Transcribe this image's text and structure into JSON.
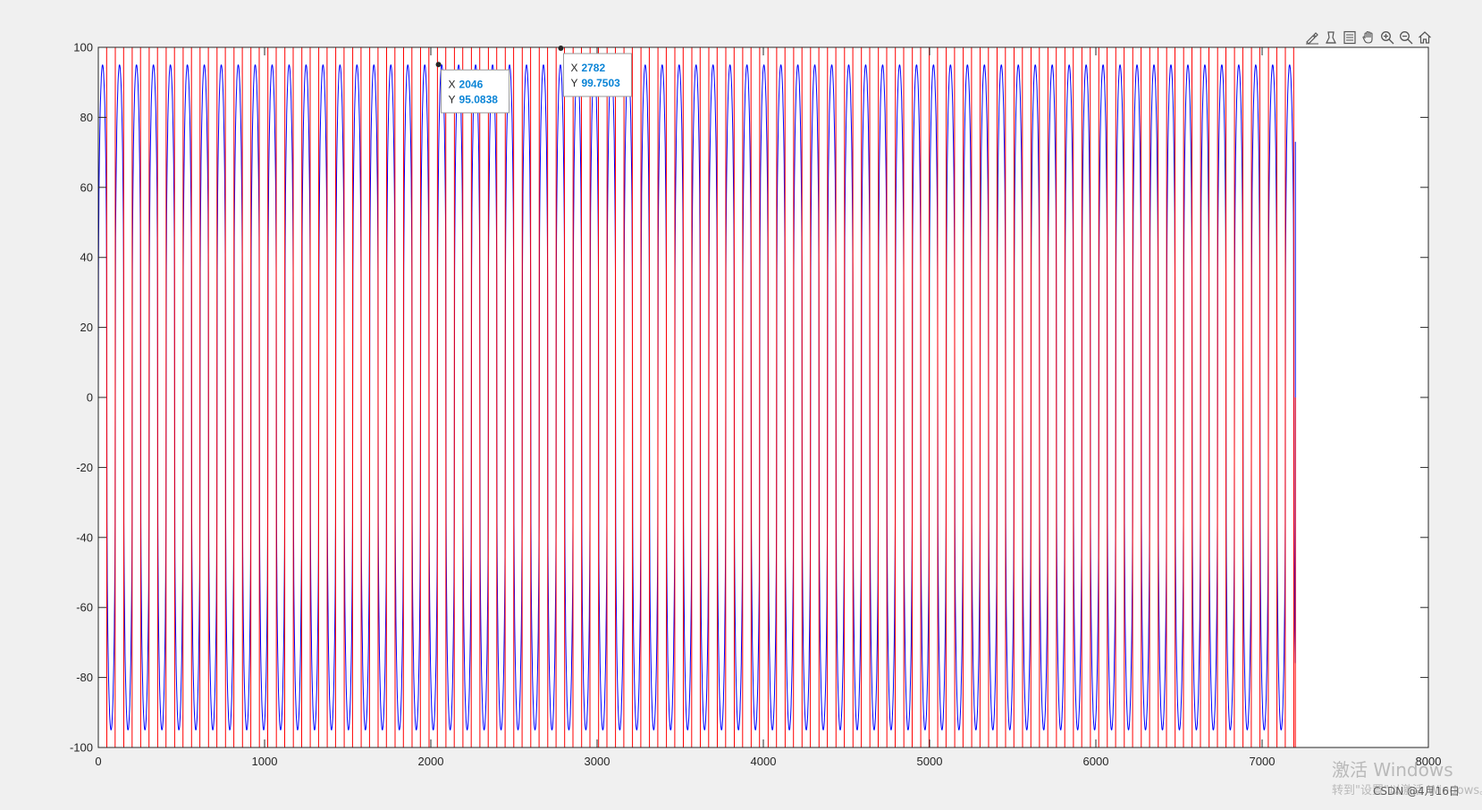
{
  "toolbar": {
    "icons": [
      "brush-icon",
      "datatip-icon",
      "legend-icon",
      "pan-icon",
      "zoom-in-icon",
      "zoom-out-icon",
      "home-icon"
    ]
  },
  "chart_data": {
    "type": "line",
    "title": "",
    "xlabel": "",
    "ylabel": "",
    "xlim": [
      0,
      8000
    ],
    "ylim": [
      -100,
      100
    ],
    "xticks": [
      "0",
      "1000",
      "2000",
      "3000",
      "4000",
      "5000",
      "6000",
      "7000",
      "8000"
    ],
    "yticks": [
      "100",
      "80",
      "60",
      "40",
      "20",
      "0",
      "-20",
      "-40",
      "-60",
      "-80",
      "-100"
    ],
    "grid": false,
    "legend": "none",
    "series": [
      {
        "color": "#0000ff",
        "description": "periodic oscillation, peaks ~95, troughs ~-95, period ~102 samples, samples 0 to ~7200",
        "period": 102,
        "amplitude": 95,
        "x_start": 0,
        "x_end": 7200,
        "end_value": 73
      },
      {
        "color": "#ff0000",
        "description": "periodic square-like oscillation between -100 and 100, period ~102 samples, samples 0 to ~7200",
        "period": 102,
        "amplitude": 100,
        "x_start": 0,
        "x_end": 7200,
        "end_value": 0
      }
    ],
    "datatips": [
      {
        "x_label": "X",
        "x_value": "2046",
        "y_label": "Y",
        "y_value": "95.0838",
        "x": 2046,
        "y": 95.0838
      },
      {
        "x_label": "X",
        "x_value": "2782",
        "y_label": "Y",
        "y_value": "99.7503",
        "x": 2782,
        "y": 99.7503
      }
    ]
  },
  "watermark": {
    "line1": "激活 Windows",
    "line2": "转到\"设置\"以激活 Windows。"
  },
  "attribution": "CSDN @4月16日"
}
